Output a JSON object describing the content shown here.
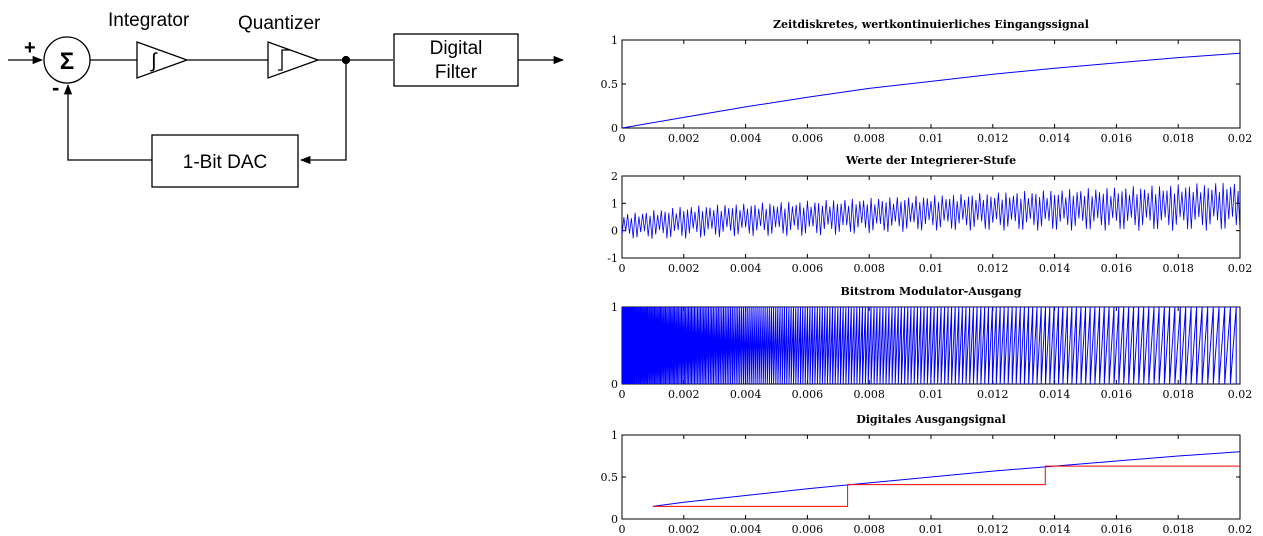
{
  "block_diagram": {
    "integrator_label": "Integrator",
    "quantizer_label": "Quantizer",
    "sum_symbol": "Σ",
    "integral_symbol": "∫",
    "plus_sign": "+",
    "minus_sign": "-",
    "filter_line1": "Digital",
    "filter_line2": "Filter",
    "dac_label": "1-Bit DAC"
  },
  "colors": {
    "signal": "#0000ff",
    "output_step": "#ff0000",
    "axes": "#000000"
  },
  "chart_data": [
    {
      "type": "line",
      "title": "Zeitdiskretes, wertkontinuierliches Eingangssignal",
      "xlim": [
        0,
        0.02
      ],
      "ylim": [
        0,
        1
      ],
      "xticks": [
        0,
        0.002,
        0.004,
        0.006,
        0.008,
        0.01,
        0.012,
        0.014,
        0.016,
        0.018,
        0.02
      ],
      "xtick_labels": [
        "0",
        "0.002",
        "0.004",
        "0.006",
        "0.008",
        "0.01",
        "0.012",
        "0.014",
        "0.016",
        "0.018",
        "0.02"
      ],
      "yticks": [
        0,
        0.5,
        1
      ],
      "ytick_labels": [
        "0",
        "0.5",
        "1"
      ],
      "series": [
        {
          "x": [
            0,
            0.002,
            0.004,
            0.006,
            0.008,
            0.01,
            0.012,
            0.014,
            0.016,
            0.018,
            0.02
          ],
          "y": [
            0,
            0.12,
            0.24,
            0.35,
            0.45,
            0.53,
            0.61,
            0.68,
            0.74,
            0.8,
            0.85
          ]
        }
      ]
    },
    {
      "type": "line",
      "title": "Werte der Integrierer-Stufe",
      "xlim": [
        0,
        0.02
      ],
      "ylim": [
        -1,
        2
      ],
      "xticks": [
        0,
        0.002,
        0.004,
        0.006,
        0.008,
        0.01,
        0.012,
        0.014,
        0.016,
        0.018,
        0.02
      ],
      "xtick_labels": [
        "0",
        "0.002",
        "0.004",
        "0.006",
        "0.008",
        "0.01",
        "0.012",
        "0.014",
        "0.016",
        "0.018",
        "0.02"
      ],
      "yticks": [
        -1,
        0,
        1,
        2
      ],
      "ytick_labels": [
        "-1",
        "0",
        "1",
        "2"
      ],
      "series": [
        {
          "x": [
            0,
            0.002,
            0.004,
            0.006,
            0.008,
            0.01,
            0.012,
            0.014,
            0.016,
            0.018,
            0.02
          ],
          "y_min": [
            -0.3,
            -0.3,
            -0.2,
            -0.2,
            -0.1,
            0.0,
            0.0,
            0.0,
            0.0,
            0.0,
            0.0
          ],
          "y_max": [
            0.6,
            0.9,
            1.0,
            1.1,
            1.2,
            1.3,
            1.4,
            1.5,
            1.6,
            1.7,
            1.8
          ]
        }
      ]
    },
    {
      "type": "line",
      "title": "Bitstrom Modulator-Ausgang",
      "xlim": [
        0,
        0.02
      ],
      "ylim": [
        0,
        1
      ],
      "xticks": [
        0,
        0.002,
        0.004,
        0.006,
        0.008,
        0.01,
        0.012,
        0.014,
        0.016,
        0.018,
        0.02
      ],
      "xtick_labels": [
        "0",
        "0.002",
        "0.004",
        "0.006",
        "0.008",
        "0.01",
        "0.012",
        "0.014",
        "0.016",
        "0.018",
        "0.02"
      ],
      "yticks": [
        0,
        1
      ],
      "ytick_labels": [
        "0",
        "1"
      ],
      "series": [
        {
          "values": [
            0,
            1
          ]
        }
      ]
    },
    {
      "type": "line",
      "title": "Digitales Ausgangsignal",
      "xlim": [
        0,
        0.02
      ],
      "ylim": [
        0,
        1
      ],
      "xticks": [
        0,
        0.002,
        0.004,
        0.006,
        0.008,
        0.01,
        0.012,
        0.014,
        0.016,
        0.018,
        0.02
      ],
      "xtick_labels": [
        "0",
        "0.002",
        "0.004",
        "0.006",
        "0.008",
        "0.01",
        "0.012",
        "0.014",
        "0.016",
        "0.018",
        "0.02"
      ],
      "yticks": [
        0,
        0.5,
        1
      ],
      "ytick_labels": [
        "0",
        "0.5",
        "1"
      ],
      "series": [
        {
          "x": [
            0.001,
            0.002,
            0.004,
            0.006,
            0.008,
            0.01,
            0.012,
            0.014,
            0.016,
            0.018,
            0.02
          ],
          "y": [
            0.15,
            0.2,
            0.28,
            0.36,
            0.43,
            0.5,
            0.57,
            0.63,
            0.69,
            0.75,
            0.8
          ]
        },
        {
          "x": [
            0.001,
            0.0073,
            0.0073,
            0.0137,
            0.0137,
            0.02
          ],
          "y": [
            0.15,
            0.15,
            0.41,
            0.41,
            0.63,
            0.63
          ]
        }
      ]
    }
  ]
}
